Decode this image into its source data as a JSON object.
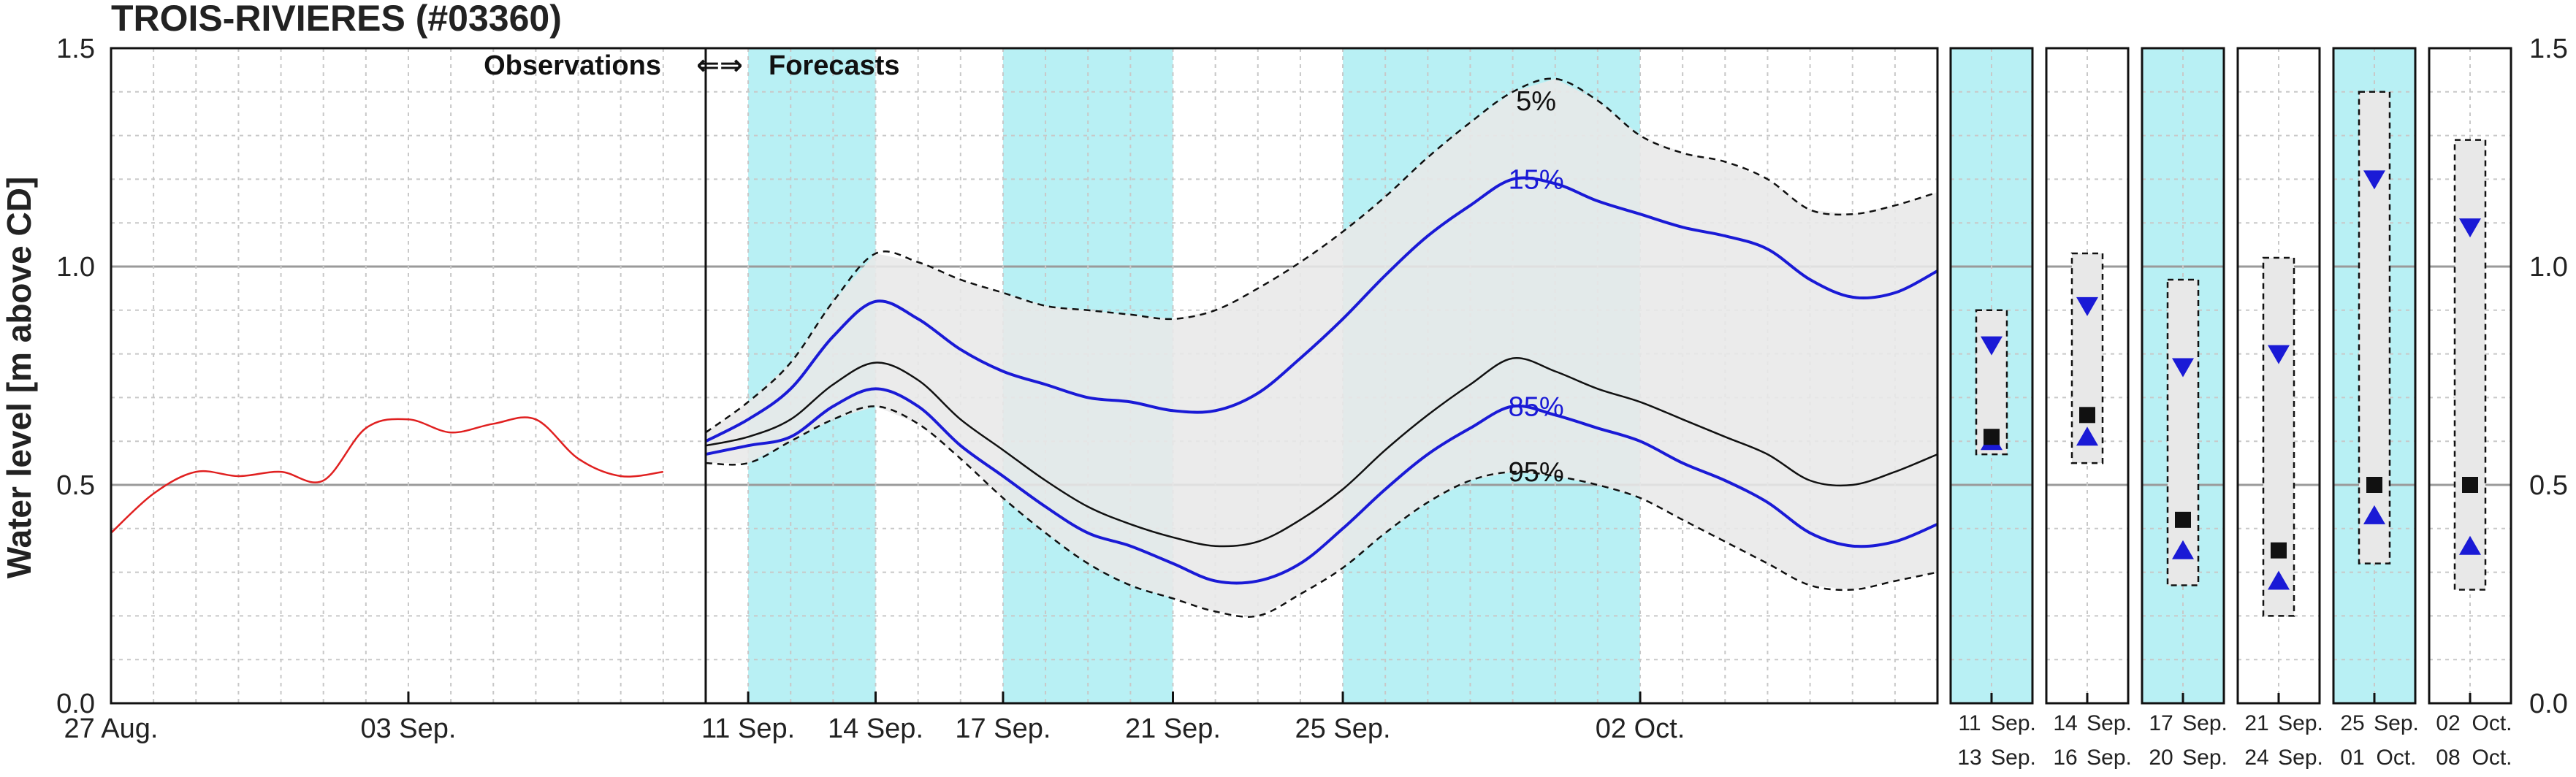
{
  "chart_data": {
    "type": "line",
    "title": "TROIS-RIVIERES (#03360)",
    "ylabel": "Water level [m above CD]",
    "ylim": [
      0.0,
      1.5
    ],
    "yticks": [
      "0.0",
      "0.5",
      "1.0",
      "1.5"
    ],
    "yticks_values": [
      0.0,
      0.5,
      1.0,
      1.5
    ],
    "xlim": [
      "2025-08-27",
      "2025-10-09"
    ],
    "xticks": [
      {
        "label": "27 Aug.",
        "date": "2025-08-27"
      },
      {
        "label": "03 Sep.",
        "date": "2025-09-03"
      },
      {
        "label": "11 Sep.",
        "date": "2025-09-11"
      },
      {
        "label": "14 Sep.",
        "date": "2025-09-14"
      },
      {
        "label": "17 Sep.",
        "date": "2025-09-17"
      },
      {
        "label": "21 Sep.",
        "date": "2025-09-21"
      },
      {
        "label": "25 Sep.",
        "date": "2025-09-25"
      },
      {
        "label": "02 Oct.",
        "date": "2025-10-02"
      }
    ],
    "observations_label": "Observations",
    "forecasts_label": "Forecasts",
    "arrows": "⇐⇒",
    "forecast_start": "2025-09-10",
    "shaded_periods": [
      [
        "2025-09-11",
        "2025-09-14"
      ],
      [
        "2025-09-17",
        "2025-09-21"
      ],
      [
        "2025-09-25",
        "2025-10-02"
      ]
    ],
    "percentile_labels": [
      {
        "text": "5%",
        "date": "2025-09-29",
        "y": 1.38,
        "color": "#111111"
      },
      {
        "text": "15%",
        "date": "2025-09-29",
        "y": 1.2,
        "color": "#1a1ad6"
      },
      {
        "text": "85%",
        "date": "2025-09-29",
        "y": 0.68,
        "color": "#1a1ad6"
      },
      {
        "text": "95%",
        "date": "2025-09-29",
        "y": 0.53,
        "color": "#111111"
      }
    ],
    "series": [
      {
        "key": "observations",
        "color": "#e02020",
        "style": "solid",
        "points": [
          [
            "2025-08-27",
            0.39
          ],
          [
            "2025-08-28",
            0.48
          ],
          [
            "2025-08-29",
            0.53
          ],
          [
            "2025-08-30",
            0.52
          ],
          [
            "2025-08-31",
            0.53
          ],
          [
            "2025-09-01",
            0.51
          ],
          [
            "2025-09-02",
            0.63
          ],
          [
            "2025-09-03",
            0.65
          ],
          [
            "2025-09-04",
            0.62
          ],
          [
            "2025-09-05",
            0.64
          ],
          [
            "2025-09-06",
            0.65
          ],
          [
            "2025-09-07",
            0.56
          ],
          [
            "2025-09-08",
            0.52
          ],
          [
            "2025-09-09",
            0.53
          ]
        ]
      },
      {
        "key": "p5",
        "color": "#111111",
        "style": "dashed",
        "points": [
          [
            "2025-09-10",
            0.62
          ],
          [
            "2025-09-11",
            0.69
          ],
          [
            "2025-09-12",
            0.78
          ],
          [
            "2025-09-13",
            0.92
          ],
          [
            "2025-09-14",
            1.03
          ],
          [
            "2025-09-15",
            1.01
          ],
          [
            "2025-09-16",
            0.97
          ],
          [
            "2025-09-17",
            0.94
          ],
          [
            "2025-09-18",
            0.91
          ],
          [
            "2025-09-19",
            0.9
          ],
          [
            "2025-09-20",
            0.89
          ],
          [
            "2025-09-21",
            0.88
          ],
          [
            "2025-09-22",
            0.9
          ],
          [
            "2025-09-23",
            0.95
          ],
          [
            "2025-09-24",
            1.01
          ],
          [
            "2025-09-25",
            1.08
          ],
          [
            "2025-09-26",
            1.16
          ],
          [
            "2025-09-27",
            1.25
          ],
          [
            "2025-09-28",
            1.33
          ],
          [
            "2025-09-29",
            1.4
          ],
          [
            "2025-09-30",
            1.43
          ],
          [
            "2025-10-01",
            1.38
          ],
          [
            "2025-10-02",
            1.3
          ],
          [
            "2025-10-03",
            1.26
          ],
          [
            "2025-10-04",
            1.24
          ],
          [
            "2025-10-05",
            1.2
          ],
          [
            "2025-10-06",
            1.13
          ],
          [
            "2025-10-07",
            1.12
          ],
          [
            "2025-10-08",
            1.14
          ],
          [
            "2025-10-09",
            1.17
          ]
        ]
      },
      {
        "key": "p15",
        "color": "#1a1ad6",
        "style": "solid",
        "points": [
          [
            "2025-09-10",
            0.6
          ],
          [
            "2025-09-11",
            0.65
          ],
          [
            "2025-09-12",
            0.72
          ],
          [
            "2025-09-13",
            0.84
          ],
          [
            "2025-09-14",
            0.92
          ],
          [
            "2025-09-15",
            0.88
          ],
          [
            "2025-09-16",
            0.81
          ],
          [
            "2025-09-17",
            0.76
          ],
          [
            "2025-09-18",
            0.73
          ],
          [
            "2025-09-19",
            0.7
          ],
          [
            "2025-09-20",
            0.69
          ],
          [
            "2025-09-21",
            0.67
          ],
          [
            "2025-09-22",
            0.67
          ],
          [
            "2025-09-23",
            0.71
          ],
          [
            "2025-09-24",
            0.79
          ],
          [
            "2025-09-25",
            0.88
          ],
          [
            "2025-09-26",
            0.98
          ],
          [
            "2025-09-27",
            1.07
          ],
          [
            "2025-09-28",
            1.14
          ],
          [
            "2025-09-29",
            1.2
          ],
          [
            "2025-09-30",
            1.19
          ],
          [
            "2025-10-01",
            1.15
          ],
          [
            "2025-10-02",
            1.12
          ],
          [
            "2025-10-03",
            1.09
          ],
          [
            "2025-10-04",
            1.07
          ],
          [
            "2025-10-05",
            1.04
          ],
          [
            "2025-10-06",
            0.97
          ],
          [
            "2025-10-07",
            0.93
          ],
          [
            "2025-10-08",
            0.94
          ],
          [
            "2025-10-09",
            0.99
          ]
        ]
      },
      {
        "key": "median",
        "color": "#111111",
        "style": "solid",
        "points": [
          [
            "2025-09-10",
            0.59
          ],
          [
            "2025-09-11",
            0.61
          ],
          [
            "2025-09-12",
            0.65
          ],
          [
            "2025-09-13",
            0.73
          ],
          [
            "2025-09-14",
            0.78
          ],
          [
            "2025-09-15",
            0.74
          ],
          [
            "2025-09-16",
            0.65
          ],
          [
            "2025-09-17",
            0.58
          ],
          [
            "2025-09-18",
            0.51
          ],
          [
            "2025-09-19",
            0.45
          ],
          [
            "2025-09-20",
            0.41
          ],
          [
            "2025-09-21",
            0.38
          ],
          [
            "2025-09-22",
            0.36
          ],
          [
            "2025-09-23",
            0.37
          ],
          [
            "2025-09-24",
            0.42
          ],
          [
            "2025-09-25",
            0.49
          ],
          [
            "2025-09-26",
            0.58
          ],
          [
            "2025-09-27",
            0.66
          ],
          [
            "2025-09-28",
            0.73
          ],
          [
            "2025-09-29",
            0.79
          ],
          [
            "2025-09-30",
            0.76
          ],
          [
            "2025-10-01",
            0.72
          ],
          [
            "2025-10-02",
            0.69
          ],
          [
            "2025-10-03",
            0.65
          ],
          [
            "2025-10-04",
            0.61
          ],
          [
            "2025-10-05",
            0.57
          ],
          [
            "2025-10-06",
            0.51
          ],
          [
            "2025-10-07",
            0.5
          ],
          [
            "2025-10-08",
            0.53
          ],
          [
            "2025-10-09",
            0.57
          ]
        ]
      },
      {
        "key": "p85",
        "color": "#1a1ad6",
        "style": "solid",
        "points": [
          [
            "2025-09-10",
            0.57
          ],
          [
            "2025-09-11",
            0.59
          ],
          [
            "2025-09-12",
            0.61
          ],
          [
            "2025-09-13",
            0.68
          ],
          [
            "2025-09-14",
            0.72
          ],
          [
            "2025-09-15",
            0.68
          ],
          [
            "2025-09-16",
            0.59
          ],
          [
            "2025-09-17",
            0.52
          ],
          [
            "2025-09-18",
            0.45
          ],
          [
            "2025-09-19",
            0.39
          ],
          [
            "2025-09-20",
            0.36
          ],
          [
            "2025-09-21",
            0.32
          ],
          [
            "2025-09-22",
            0.28
          ],
          [
            "2025-09-23",
            0.28
          ],
          [
            "2025-09-24",
            0.32
          ],
          [
            "2025-09-25",
            0.4
          ],
          [
            "2025-09-26",
            0.49
          ],
          [
            "2025-09-27",
            0.57
          ],
          [
            "2025-09-28",
            0.63
          ],
          [
            "2025-09-29",
            0.68
          ],
          [
            "2025-09-30",
            0.66
          ],
          [
            "2025-10-01",
            0.63
          ],
          [
            "2025-10-02",
            0.6
          ],
          [
            "2025-10-03",
            0.55
          ],
          [
            "2025-10-04",
            0.51
          ],
          [
            "2025-10-05",
            0.46
          ],
          [
            "2025-10-06",
            0.39
          ],
          [
            "2025-10-07",
            0.36
          ],
          [
            "2025-10-08",
            0.37
          ],
          [
            "2025-10-09",
            0.41
          ]
        ]
      },
      {
        "key": "p95",
        "color": "#111111",
        "style": "dashed",
        "points": [
          [
            "2025-09-10",
            0.55
          ],
          [
            "2025-09-11",
            0.55
          ],
          [
            "2025-09-12",
            0.6
          ],
          [
            "2025-09-13",
            0.65
          ],
          [
            "2025-09-14",
            0.68
          ],
          [
            "2025-09-15",
            0.64
          ],
          [
            "2025-09-16",
            0.56
          ],
          [
            "2025-09-17",
            0.47
          ],
          [
            "2025-09-18",
            0.39
          ],
          [
            "2025-09-19",
            0.32
          ],
          [
            "2025-09-20",
            0.27
          ],
          [
            "2025-09-21",
            0.24
          ],
          [
            "2025-09-22",
            0.21
          ],
          [
            "2025-09-23",
            0.2
          ],
          [
            "2025-09-24",
            0.25
          ],
          [
            "2025-09-25",
            0.31
          ],
          [
            "2025-09-26",
            0.39
          ],
          [
            "2025-09-27",
            0.46
          ],
          [
            "2025-09-28",
            0.51
          ],
          [
            "2025-09-29",
            0.53
          ],
          [
            "2025-09-30",
            0.52
          ],
          [
            "2025-10-01",
            0.5
          ],
          [
            "2025-10-02",
            0.47
          ],
          [
            "2025-10-03",
            0.42
          ],
          [
            "2025-10-04",
            0.37
          ],
          [
            "2025-10-05",
            0.32
          ],
          [
            "2025-10-06",
            0.27
          ],
          [
            "2025-10-07",
            0.26
          ],
          [
            "2025-10-08",
            0.28
          ],
          [
            "2025-10-09",
            0.3
          ]
        ]
      }
    ],
    "weekly_panels": [
      {
        "line1_day": "11",
        "line1_mon": "Sep.",
        "line2_day": "13",
        "line2_mon": "Sep.",
        "shaded": true,
        "band_low": 0.57,
        "band_high": 0.9,
        "p15": 0.82,
        "median": 0.61,
        "p85": 0.6
      },
      {
        "line1_day": "14",
        "line1_mon": "Sep.",
        "line2_day": "16",
        "line2_mon": "Sep.",
        "shaded": false,
        "band_low": 0.55,
        "band_high": 1.03,
        "p15": 0.91,
        "median": 0.66,
        "p85": 0.61
      },
      {
        "line1_day": "17",
        "line1_mon": "Sep.",
        "line2_day": "20",
        "line2_mon": "Sep.",
        "shaded": true,
        "band_low": 0.27,
        "band_high": 0.97,
        "p15": 0.77,
        "median": 0.42,
        "p85": 0.35
      },
      {
        "line1_day": "21",
        "line1_mon": "Sep.",
        "line2_day": "24",
        "line2_mon": "Sep.",
        "shaded": false,
        "band_low": 0.2,
        "band_high": 1.02,
        "p15": 0.8,
        "median": 0.35,
        "p85": 0.28
      },
      {
        "line1_day": "25",
        "line1_mon": "Sep.",
        "line2_day": "01",
        "line2_mon": "Oct.",
        "shaded": true,
        "band_low": 0.32,
        "band_high": 1.4,
        "p15": 1.2,
        "median": 0.5,
        "p85": 0.43
      },
      {
        "line1_day": "02",
        "line1_mon": "Oct.",
        "line2_day": "08",
        "line2_mon": "Oct.",
        "shaded": false,
        "band_low": 0.26,
        "band_high": 1.29,
        "p15": 1.09,
        "median": 0.5,
        "p85": 0.36
      }
    ],
    "colors": {
      "shade": "#b8f0f4",
      "band": "#e8e8e8",
      "observations": "#e02020",
      "forecast_blue": "#1a1ad6",
      "median": "#111111",
      "grid_minor": "#c8c8c8",
      "grid_major": "#9a9a9a"
    }
  }
}
